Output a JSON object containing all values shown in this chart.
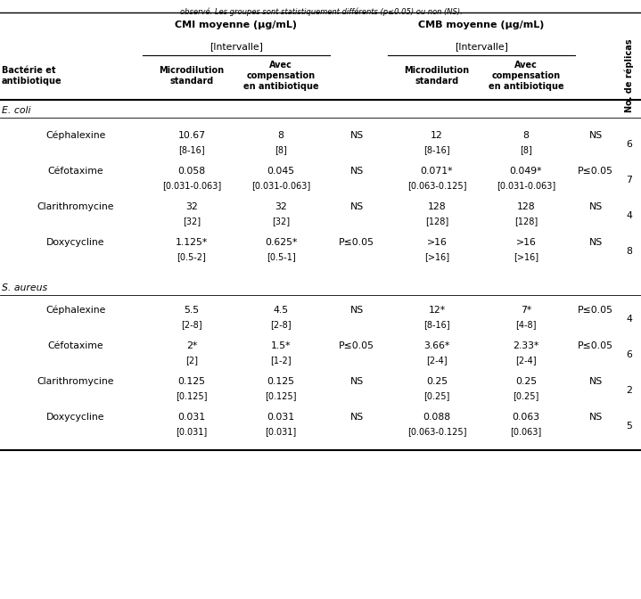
{
  "obs_text": "observé. Les groupes sont statistiquement différents (p≤0.05) ou non (NS).",
  "col_headers": {
    "cmi": "CMI moyenne (µg/mL)",
    "cmb": "CMB moyenne (µg/mL)",
    "intervalle": "[Intervalle]",
    "bacterie": "Bactérie et\nantibiotique",
    "replicas": "No. de réplicas"
  },
  "ecoli_label": "E. coli",
  "saureus_label": "S. aureus",
  "rows": [
    {
      "antibiotique": "Céphalexine",
      "cmi_std": "10.67",
      "cmi_std_interval": "[8-16]",
      "cmi_comp": "8",
      "cmi_comp_interval": "[8]",
      "cmi_stat": "NS",
      "cmb_std": "12",
      "cmb_std_interval": "[8-16]",
      "cmb_comp": "8",
      "cmb_comp_interval": "[8]",
      "cmb_stat": "NS",
      "replicas": "6"
    },
    {
      "antibiotique": "Céfotaxime",
      "cmi_std": "0.058",
      "cmi_std_interval": "[0.031-0.063]",
      "cmi_comp": "0.045",
      "cmi_comp_interval": "[0.031-0.063]",
      "cmi_stat": "NS",
      "cmb_std": "0.071*",
      "cmb_std_interval": "[0.063-0.125]",
      "cmb_comp": "0.049*",
      "cmb_comp_interval": "[0.031-0.063]",
      "cmb_stat": "P≤0.05",
      "replicas": "7"
    },
    {
      "antibiotique": "Clarithromycine",
      "cmi_std": "32",
      "cmi_std_interval": "[32]",
      "cmi_comp": "32",
      "cmi_comp_interval": "[32]",
      "cmi_stat": "NS",
      "cmb_std": "128",
      "cmb_std_interval": "[128]",
      "cmb_comp": "128",
      "cmb_comp_interval": "[128]",
      "cmb_stat": "NS",
      "replicas": "4"
    },
    {
      "antibiotique": "Doxycycline",
      "cmi_std": "1.125*",
      "cmi_std_interval": "[0.5-2]",
      "cmi_comp": "0.625*",
      "cmi_comp_interval": "[0.5-1]",
      "cmi_stat": "P≤0.05",
      "cmb_std": ">16",
      "cmb_std_interval": "[>16]",
      "cmb_comp": ">16",
      "cmb_comp_interval": "[>16]",
      "cmb_stat": "NS",
      "replicas": "8"
    },
    {
      "antibiotique": "Céphalexine",
      "cmi_std": "5.5",
      "cmi_std_interval": "[2-8]",
      "cmi_comp": "4.5",
      "cmi_comp_interval": "[2-8]",
      "cmi_stat": "NS",
      "cmb_std": "12*",
      "cmb_std_interval": "[8-16]",
      "cmb_comp": "7*",
      "cmb_comp_interval": "[4-8]",
      "cmb_stat": "P≤0.05",
      "replicas": "4"
    },
    {
      "antibiotique": "Céfotaxime",
      "cmi_std": "2*",
      "cmi_std_interval": "[2]",
      "cmi_comp": "1.5*",
      "cmi_comp_interval": "[1-2]",
      "cmi_stat": "P≤0.05",
      "cmb_std": "3.66*",
      "cmb_std_interval": "[2-4]",
      "cmb_comp": "2.33*",
      "cmb_comp_interval": "[2-4]",
      "cmb_stat": "P≤0.05",
      "replicas": "6"
    },
    {
      "antibiotique": "Clarithromycine",
      "cmi_std": "0.125",
      "cmi_std_interval": "[0.125]",
      "cmi_comp": "0.125",
      "cmi_comp_interval": "[0.125]",
      "cmi_stat": "NS",
      "cmb_std": "0.25",
      "cmb_std_interval": "[0.25]",
      "cmb_comp": "0.25",
      "cmb_comp_interval": "[0.25]",
      "cmb_stat": "NS",
      "replicas": "2"
    },
    {
      "antibiotique": "Doxycycline",
      "cmi_std": "0.031",
      "cmi_std_interval": "[0.031]",
      "cmi_comp": "0.031",
      "cmi_comp_interval": "[0.031]",
      "cmi_stat": "NS",
      "cmb_std": "0.088",
      "cmb_std_interval": "[0.063-0.125]",
      "cmb_comp": "0.063",
      "cmb_comp_interval": "[0.063]",
      "cmb_stat": "NS",
      "replicas": "5"
    }
  ]
}
